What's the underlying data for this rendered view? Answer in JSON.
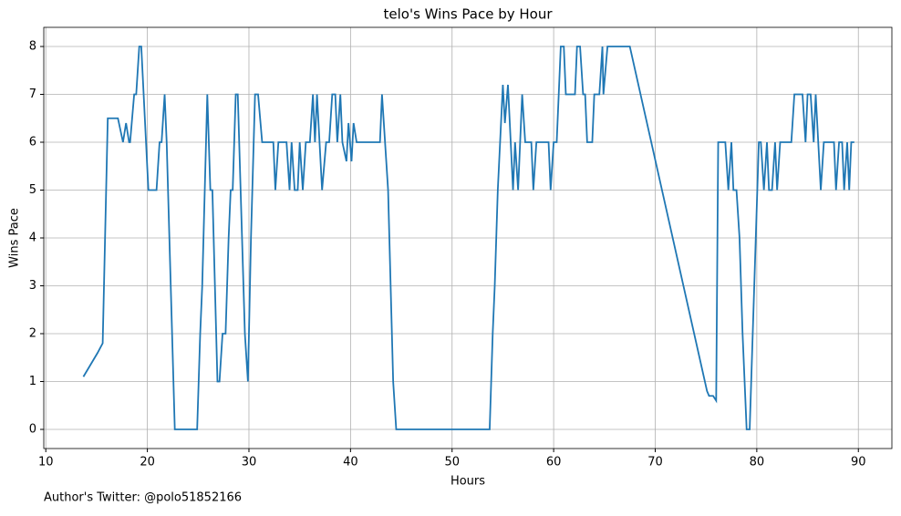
{
  "chart_data": {
    "type": "line",
    "title": "telo's Wins Pace by Hour",
    "x_label": "Hours",
    "y_label": "Wins Pace",
    "footnote": "Author's Twitter: @polo51852166",
    "grid": true,
    "xlim": [
      9.8,
      93.3
    ],
    "ylim": [
      -0.4,
      8.4
    ],
    "xticks": [
      10,
      20,
      30,
      40,
      50,
      60,
      70,
      80,
      90
    ],
    "yticks": [
      0,
      1,
      2,
      3,
      4,
      5,
      6,
      7,
      8
    ],
    "x": [
      13.7,
      15.1,
      15.6,
      16.1,
      17.1,
      17.6,
      17.9,
      18.2,
      18.3,
      18.7,
      18.9,
      19.2,
      19.4,
      20.1,
      20.9,
      21.2,
      21.4,
      21.7,
      21.9,
      22.7,
      24.9,
      25.2,
      25.4,
      25.9,
      26.2,
      26.4,
      26.9,
      27.1,
      27.4,
      27.7,
      28.0,
      28.2,
      28.4,
      28.7,
      28.9,
      29.6,
      29.9,
      30.2,
      30.6,
      30.9,
      31.3,
      32.4,
      32.6,
      32.9,
      33.7,
      34.0,
      34.2,
      34.5,
      34.8,
      35.0,
      35.3,
      35.6,
      36.0,
      36.3,
      36.5,
      36.7,
      37.2,
      37.6,
      37.9,
      38.2,
      38.5,
      38.7,
      39.0,
      39.2,
      39.6,
      39.8,
      40.1,
      40.3,
      40.6,
      42.9,
      43.1,
      43.7,
      44.2,
      44.5,
      53.7,
      54.0,
      54.2,
      54.5,
      55.0,
      55.2,
      55.5,
      56.0,
      56.2,
      56.5,
      56.9,
      57.2,
      57.8,
      58.0,
      58.3,
      59.5,
      59.7,
      60.0,
      60.3,
      60.7,
      61.0,
      61.2,
      62.1,
      62.3,
      62.6,
      62.9,
      63.1,
      63.3,
      63.8,
      64.0,
      64.5,
      64.8,
      64.9,
      65.3,
      67.5,
      75.1,
      75.3,
      75.7,
      76.0,
      76.2,
      76.9,
      77.2,
      77.5,
      77.7,
      78.0,
      78.3,
      78.6,
      79.0,
      79.3,
      79.6,
      79.9,
      80.2,
      80.4,
      80.7,
      81.0,
      81.2,
      81.5,
      81.8,
      82.0,
      82.3,
      83.4,
      83.7,
      84.5,
      84.8,
      85.0,
      85.3,
      85.6,
      85.8,
      86.3,
      86.6,
      87.6,
      87.8,
      88.1,
      88.4,
      88.6,
      88.9,
      89.1,
      89.3,
      89.6
    ],
    "series": [
      {
        "name": "Wins Pace",
        "color": "#1f77b4",
        "values": [
          1.1,
          1.6,
          1.8,
          6.5,
          6.5,
          6,
          6.4,
          6,
          6,
          7,
          7,
          8,
          8,
          5,
          5,
          6,
          6,
          7,
          6,
          0,
          0,
          2,
          3,
          7,
          5,
          5,
          1,
          1,
          2,
          2,
          4,
          5,
          5,
          7,
          7,
          2,
          1,
          4,
          7,
          7,
          6,
          6,
          5,
          6,
          6,
          5,
          6,
          5,
          5,
          6,
          5,
          6,
          6,
          7,
          6,
          7,
          5,
          6,
          6,
          7,
          7,
          6,
          7,
          6,
          5.6,
          6.4,
          5.6,
          6.4,
          6,
          6,
          7,
          5,
          1,
          0,
          0,
          2,
          3,
          5,
          7.2,
          6.4,
          7.2,
          5,
          6,
          5,
          7,
          6,
          6,
          5,
          6,
          6,
          5,
          6,
          6,
          8,
          8,
          7,
          7,
          8,
          8,
          7,
          7,
          6,
          6,
          7,
          7,
          8,
          7,
          8,
          8,
          0.8,
          0.7,
          0.7,
          0.6,
          6,
          6,
          5,
          6,
          5,
          5,
          4,
          2,
          0,
          0,
          2,
          4,
          6,
          6,
          5,
          6,
          5,
          5,
          6,
          5,
          6,
          6,
          7,
          7,
          6,
          7,
          7,
          6,
          7,
          5,
          6,
          6,
          5,
          6,
          6,
          5,
          6,
          5,
          6,
          6
        ]
      }
    ]
  }
}
